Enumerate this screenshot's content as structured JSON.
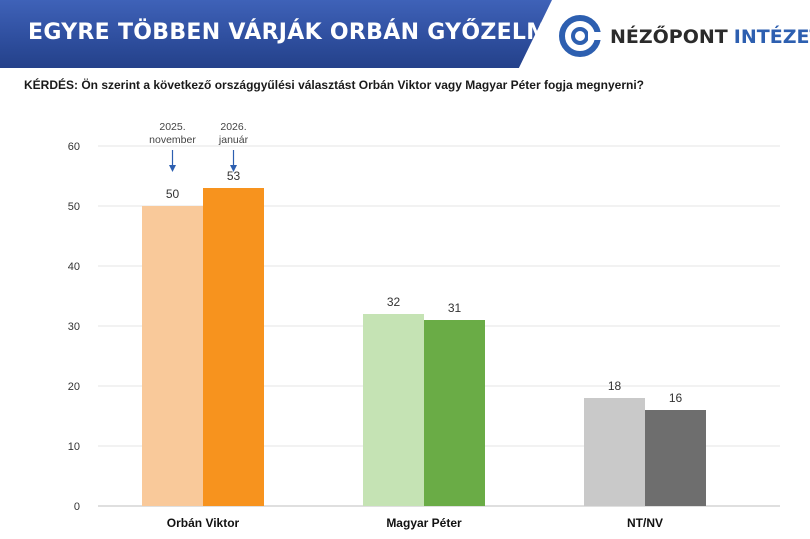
{
  "header": {
    "title": "EGYRE TÖBBEN VÁRJÁK ORBÁN GYŐZELMÉT",
    "logo_word1": "NÉZŐPONT",
    "logo_word2": "INTÉZET",
    "logo_icon": "target-ring-icon"
  },
  "question": "KÉRDÉS: Ön szerint a következő országgyűlési választást Orbán Viktor vagy Magyar Péter fogja megnyerni?",
  "colors": {
    "header_band": "#2f4f9f",
    "logo_blue": "#2d5fb0",
    "orban_2025": "#f9c99a",
    "orban_2026": "#f7931e",
    "magyar_2025": "#c5e3b4",
    "magyar_2026": "#6aac46",
    "ntnv_2025": "#c9c9c9",
    "ntnv_2026": "#6e6e6e"
  },
  "chart_data": {
    "type": "bar",
    "categories": [
      "Orbán Viktor",
      "Magyar Péter",
      "NT/NV"
    ],
    "series": [
      {
        "period": "2025. november",
        "values": [
          50,
          32,
          18
        ]
      },
      {
        "period": "2026. január",
        "values": [
          53,
          31,
          16
        ]
      }
    ],
    "annotations": [
      {
        "line1": "2025.",
        "line2": "november"
      },
      {
        "line1": "2026.",
        "line2": "január"
      }
    ],
    "ylim": [
      0,
      60
    ],
    "yticks": [
      0,
      10,
      20,
      30,
      40,
      50,
      60
    ],
    "grid": true,
    "legend": "none"
  }
}
